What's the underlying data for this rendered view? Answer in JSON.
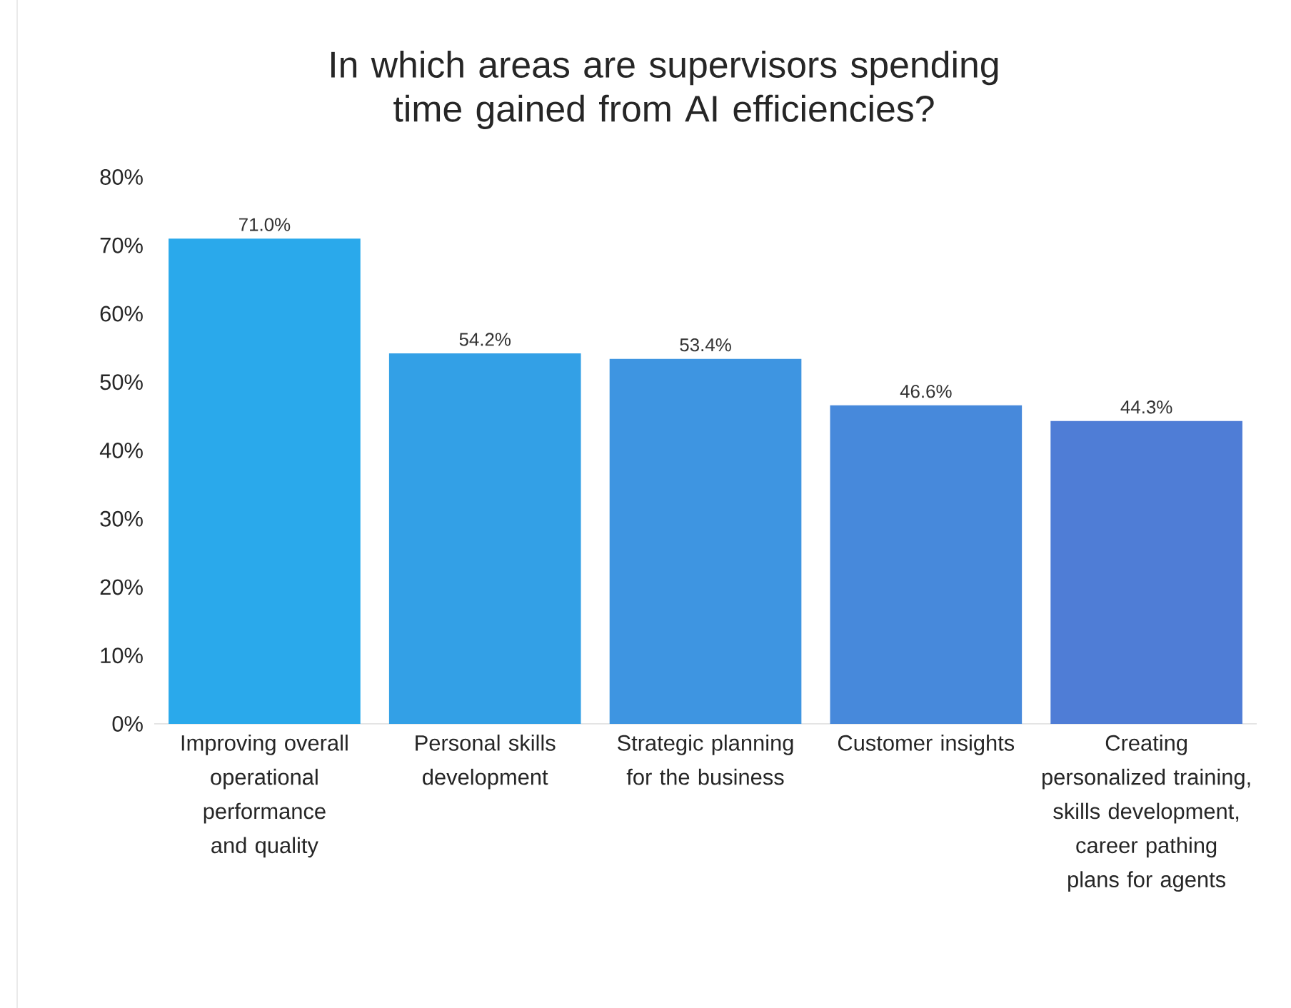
{
  "chart_data": {
    "type": "bar",
    "title": "In which areas are supervisors spending time gained from AI efficiencies?",
    "categories": [
      "Improving overall operational performance and quality",
      "Personal skills development",
      "Strategic planning for the business",
      "Customer insights",
      "Creating personalized training, skills development, career pathing plans for agents"
    ],
    "values": [
      71.0,
      54.2,
      53.4,
      46.6,
      44.3
    ],
    "value_labels": [
      "71.0%",
      "54.2%",
      "53.4%",
      "46.6%",
      "44.3%"
    ],
    "colors": [
      "#2aa9eb",
      "#33a0e6",
      "#3e95e1",
      "#4789db",
      "#4f7dd6"
    ],
    "ylim": [
      0,
      80
    ],
    "yticks": [
      {
        "value": 0,
        "label": "0%"
      },
      {
        "value": 10,
        "label": "10%"
      },
      {
        "value": 20,
        "label": "20%"
      },
      {
        "value": 30,
        "label": "30%"
      },
      {
        "value": 40,
        "label": "40%"
      },
      {
        "value": 50,
        "label": "50%"
      },
      {
        "value": 60,
        "label": "60%"
      },
      {
        "value": 70,
        "label": "70%"
      },
      {
        "value": 80,
        "label": "80%"
      }
    ],
    "grid": false
  }
}
